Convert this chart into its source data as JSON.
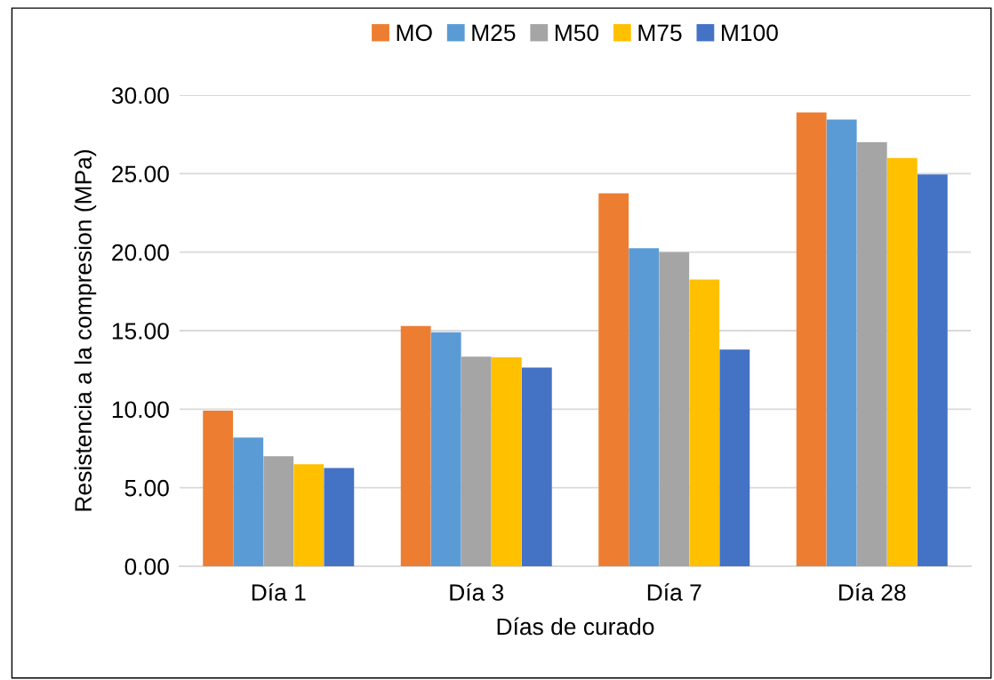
{
  "chart_data": {
    "type": "bar",
    "xlabel": "Días de curado",
    "ylabel": "Resistencia a la compresion (MPa)",
    "categories": [
      "Día 1",
      "Día 3",
      "Día 7",
      "Día 28"
    ],
    "series": [
      {
        "name": "MO",
        "color": "#ed7d31",
        "values": [
          9.9,
          15.3,
          23.75,
          28.9
        ]
      },
      {
        "name": "M25",
        "color": "#5b9bd5",
        "values": [
          8.2,
          14.9,
          20.25,
          28.45
        ]
      },
      {
        "name": "M50",
        "color": "#a5a5a5",
        "values": [
          7.0,
          13.35,
          20.0,
          27.0
        ]
      },
      {
        "name": "M75",
        "color": "#ffc000",
        "values": [
          6.5,
          13.3,
          18.25,
          26.0
        ]
      },
      {
        "name": "M100",
        "color": "#4472c4",
        "values": [
          6.25,
          12.65,
          13.8,
          24.95
        ]
      }
    ],
    "ylim": [
      0,
      30
    ],
    "yticks": [
      {
        "value": 0,
        "label": "0.00"
      },
      {
        "value": 5,
        "label": "5.00"
      },
      {
        "value": 10,
        "label": "10.00"
      },
      {
        "value": 15,
        "label": "15.00"
      },
      {
        "value": 20,
        "label": "20.00"
      },
      {
        "value": 25,
        "label": "25.00"
      },
      {
        "value": 30,
        "label": "30.00"
      }
    ],
    "grid": "y",
    "legend": "top"
  }
}
